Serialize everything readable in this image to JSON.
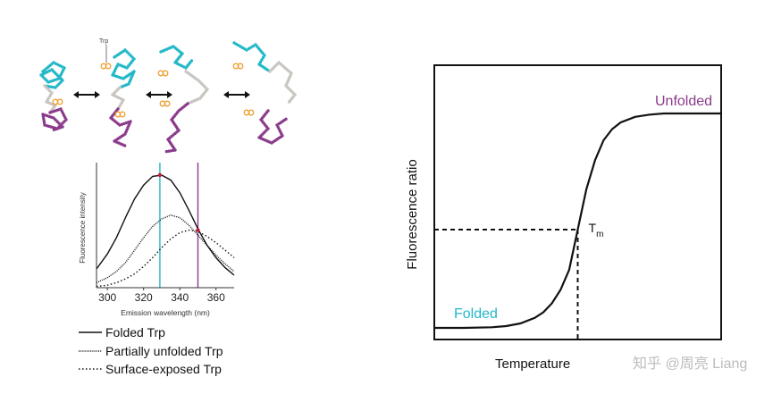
{
  "illustration": {
    "trp_label": "Trp",
    "colors": {
      "domain_a": "#22b8c8",
      "domain_b": "#8a3a8a",
      "linker": "#c8c4c0",
      "trp": "#f0a030"
    }
  },
  "chart_data": [
    {
      "type": "line",
      "title": "",
      "xlabel": "Emission wavelength (nm)",
      "ylabel": "Fluorescence intensity",
      "xlim": [
        294,
        370
      ],
      "ylim": [
        0,
        1
      ],
      "xticks": [
        300,
        320,
        340,
        360
      ],
      "x": [
        294,
        300,
        305,
        310,
        315,
        320,
        325,
        330,
        335,
        340,
        345,
        350,
        355,
        360,
        365,
        370
      ],
      "series": [
        {
          "name": "Folded Trp",
          "style": "solid",
          "values": [
            0.15,
            0.27,
            0.4,
            0.56,
            0.71,
            0.82,
            0.89,
            0.9,
            0.86,
            0.76,
            0.62,
            0.47,
            0.34,
            0.24,
            0.16,
            0.1
          ]
        },
        {
          "name": "Partially unfolded Trp",
          "style": "dense-dotted",
          "values": [
            0.04,
            0.08,
            0.13,
            0.2,
            0.3,
            0.4,
            0.49,
            0.55,
            0.58,
            0.56,
            0.5,
            0.42,
            0.34,
            0.26,
            0.19,
            0.13
          ]
        },
        {
          "name": "Surface-exposed Trp",
          "style": "dotted",
          "values": [
            0.01,
            0.02,
            0.04,
            0.07,
            0.11,
            0.17,
            0.24,
            0.32,
            0.39,
            0.44,
            0.46,
            0.45,
            0.41,
            0.36,
            0.3,
            0.24
          ]
        }
      ],
      "vlines": [
        {
          "x": 329,
          "color": "#22b8c8"
        },
        {
          "x": 350,
          "color": "#8a3a8a"
        }
      ],
      "markers": [
        {
          "x": 329,
          "y": 0.9
        },
        {
          "x": 350,
          "y": 0.46
        }
      ],
      "legend_position": "bottom"
    },
    {
      "type": "line",
      "title": "",
      "xlabel": "Temperature",
      "ylabel": "Fluorescence ratio",
      "xlim": [
        0,
        100
      ],
      "ylim": [
        0,
        100
      ],
      "tm": {
        "x": 50,
        "y": 44,
        "label": "T",
        "subscript": "m"
      },
      "annotations": [
        {
          "text": "Unfolded",
          "color": "#8a3a8a"
        },
        {
          "text": "Folded",
          "color": "#22b8c8"
        }
      ],
      "series": [
        {
          "name": "",
          "x": [
            0,
            10,
            20,
            25,
            30,
            35,
            38,
            41,
            44,
            47,
            50,
            53,
            56,
            59,
            62,
            65,
            70,
            75,
            80,
            90,
            100
          ],
          "values": [
            0,
            0,
            0.3,
            0.8,
            2,
            4.5,
            7,
            11,
            17,
            26,
            44,
            62,
            75,
            84,
            89,
            92,
            94.5,
            95.5,
            96,
            96,
            96
          ]
        }
      ]
    }
  ],
  "watermark": "知乎 @周亮 Liang"
}
